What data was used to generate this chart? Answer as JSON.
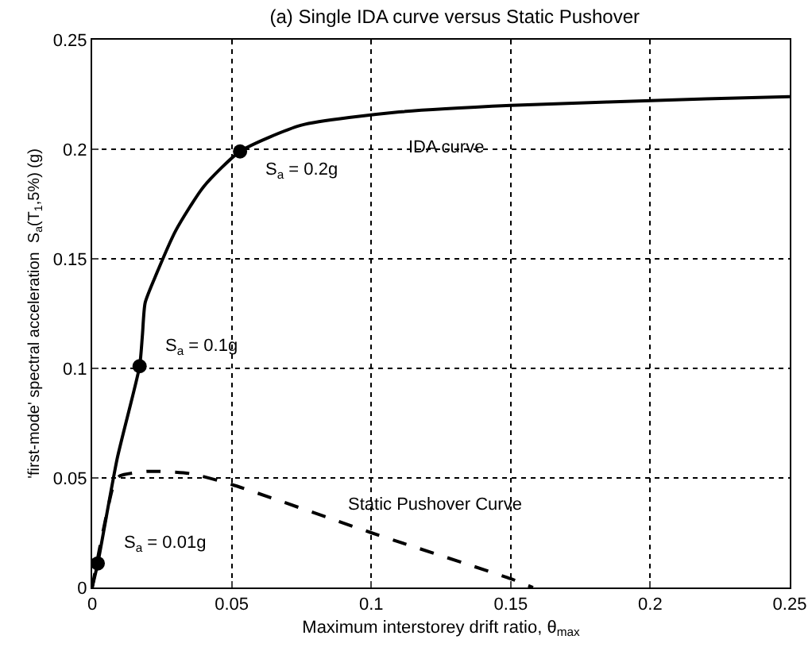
{
  "chart_data": {
    "type": "line",
    "title": "(a) Single IDA curve versus Static Pushover",
    "xlabel": "Maximum interstorey drift ratio, θ$_{max}$",
    "ylabel": "'first-mode' spectral acceleration  S$_{a}$(T$_{1}$,5%) (g)",
    "series": [
      {
        "name": "IDA curve",
        "color": "#000000",
        "line_style": "solid",
        "marker": "none",
        "x": [
          0,
          0.002,
          0.009,
          0.017,
          0.018,
          0.019,
          0.023,
          0.03,
          0.04,
          0.053,
          0.075,
          0.11,
          0.15,
          0.22,
          0.25
        ],
        "values": [
          0,
          0.011,
          0.059,
          0.101,
          0.115,
          0.13,
          0.143,
          0.163,
          0.183,
          0.199,
          0.211,
          0.217,
          0.22,
          0.223,
          0.224
        ]
      },
      {
        "name": "Static Pushover Curve",
        "color": "#000000",
        "line_style": "dashed",
        "marker": "none",
        "x": [
          0,
          0.003,
          0.008,
          0.01,
          0.02,
          0.035,
          0.05,
          0.1,
          0.15,
          0.158
        ],
        "values": [
          0,
          0.02,
          0.048,
          0.051,
          0.053,
          0.052,
          0.047,
          0.025,
          0.004,
          0
        ]
      },
      {
        "type": "scatter",
        "color": "#000000",
        "marker": "circle",
        "x": [
          0.002,
          0.017,
          0.053
        ],
        "values": [
          0.011,
          0.101,
          0.199
        ]
      }
    ],
    "annotations": [
      {
        "text": "S$_{a}$ = 0.01g",
        "x": 0.002,
        "y": 0.011
      },
      {
        "text": "S$_{a}$ = 0.1g",
        "x": 0.017,
        "y": 0.101
      },
      {
        "text": "S$_{a}$ = 0.2g",
        "x": 0.053,
        "y": 0.199
      }
    ],
    "xlim": [
      0,
      0.25
    ],
    "ylim": [
      0,
      0.25
    ],
    "xticks": [
      0,
      0.05,
      0.1,
      0.15,
      0.2,
      0.25
    ],
    "yticks": [
      0,
      0.05,
      0.1,
      0.15,
      0.2,
      0.25
    ],
    "grid": true,
    "legend": false
  }
}
